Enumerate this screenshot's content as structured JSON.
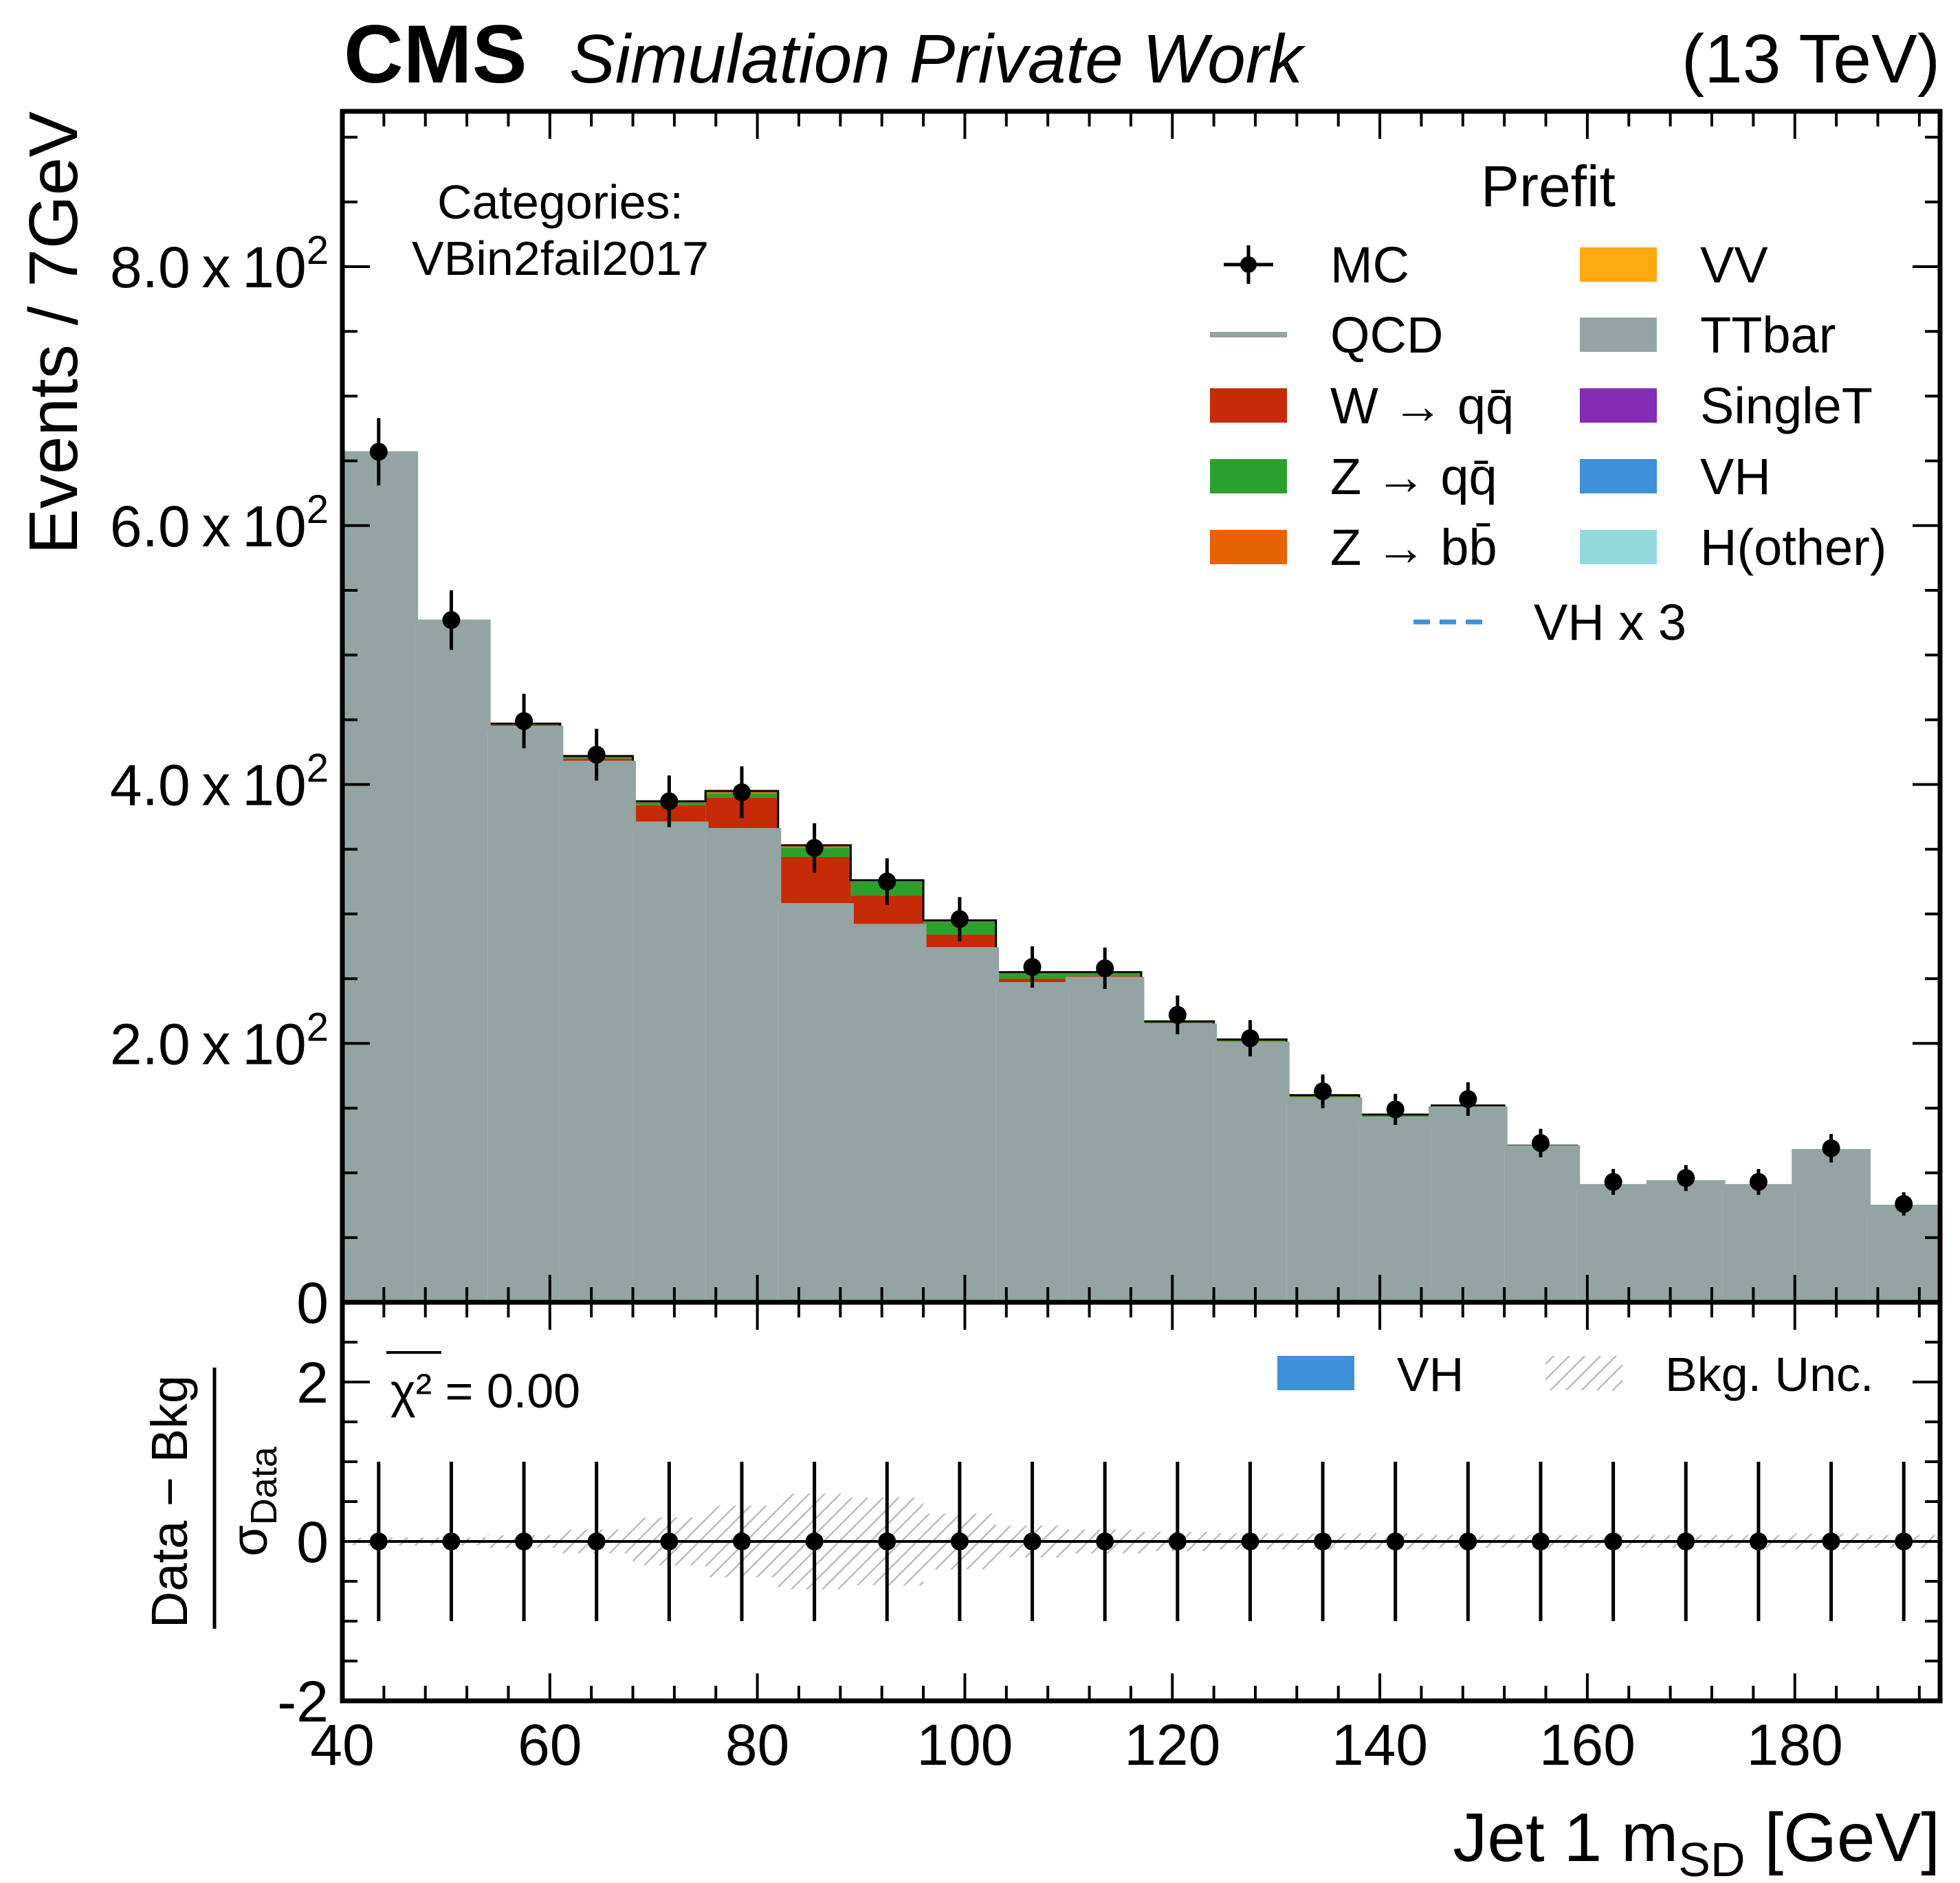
{
  "header": {
    "experiment": "CMS",
    "status": "Simulation Private Work",
    "energy": "(13 TeV)"
  },
  "category": {
    "title": "Categories:",
    "name": "VBin2fail2017"
  },
  "legend": {
    "title": "Prefit",
    "entries": [
      {
        "label": "MC",
        "kind": "errorbar",
        "color": "#000000"
      },
      {
        "label": "QCD",
        "kind": "line",
        "color": "#94a4a2"
      },
      {
        "label": "W → qq̄",
        "kind": "fill",
        "color": "#c62a07"
      },
      {
        "label": "Z → qq̄",
        "kind": "fill",
        "color": "#2ca02c"
      },
      {
        "label": "Z → bb̄",
        "kind": "fill",
        "color": "#e76300"
      },
      {
        "label": "VV",
        "kind": "fill",
        "color": "#ffa90e"
      },
      {
        "label": "TTbar",
        "kind": "fill",
        "color": "#94a4a2"
      },
      {
        "label": "SingleT",
        "kind": "fill",
        "color": "#832db6"
      },
      {
        "label": "VH",
        "kind": "fill",
        "color": "#3f90da"
      },
      {
        "label": "H(other)",
        "kind": "fill",
        "color": "#92dadd"
      },
      {
        "label": "VH x 3",
        "kind": "dashed",
        "color": "#3f90da"
      }
    ]
  },
  "ratio_legend": {
    "chi2": "χ² = 0.00",
    "vh": "VH",
    "unc": "Bkg. Unc."
  },
  "chart_data": {
    "type": "bar",
    "stacked": true,
    "top_ylabel": "Events / 7GeV",
    "ratio_ylabel_num": "Data − Bkg",
    "ratio_ylabel_den": "σ",
    "ratio_ylabel_den_sub": "Data",
    "xlabel_main": "Jet 1 m",
    "xlabel_sub": "SD",
    "xlabel_unit": " [GeV]",
    "xlim": [
      40,
      194
    ],
    "ylim": [
      0,
      920
    ],
    "ratio_ylim": [
      -2,
      3
    ],
    "x_ticks": [
      40,
      60,
      80,
      100,
      120,
      140,
      160,
      180
    ],
    "y_ticks": [
      {
        "value": 0,
        "mant": "0",
        "exp": ""
      },
      {
        "value": 200,
        "mant": "2.0",
        "exp": "2"
      },
      {
        "value": 400,
        "mant": "4.0",
        "exp": "2"
      },
      {
        "value": 600,
        "mant": "6.0",
        "exp": "2"
      },
      {
        "value": 800,
        "mant": "8.0",
        "exp": "2"
      }
    ],
    "ratio_y_ticks": [
      {
        "value": -2,
        "label": "-2"
      },
      {
        "value": 0,
        "label": "0"
      },
      {
        "value": 2,
        "label": "2"
      }
    ],
    "bin_edges": [
      40,
      47,
      54,
      61,
      68,
      75,
      82,
      89,
      96,
      103,
      110,
      117,
      124,
      131,
      138,
      145,
      152,
      159,
      166,
      173,
      180,
      187,
      194
    ],
    "series": [
      {
        "name": "QCD",
        "color": "#94a4a2",
        "values": [
          655,
          525,
          443,
          416,
          369,
          364,
          306,
          290,
          272,
          245,
          249,
          213,
          199,
          156,
          141,
          149,
          119,
          89,
          92,
          89,
          116,
          73
        ]
      },
      {
        "name": "W → qq̄",
        "color": "#c62a07",
        "values": [
          1,
          1,
          3,
          4,
          15,
          26,
          38,
          24,
          12,
          5,
          3,
          2,
          2,
          2,
          2,
          1,
          1,
          1,
          1,
          1,
          1,
          1
        ]
      },
      {
        "name": "Z → qq̄",
        "color": "#2ca02c",
        "values": [
          0,
          0,
          1,
          1,
          2,
          3,
          7,
          11,
          10,
          4,
          2,
          1,
          1,
          1,
          1,
          1,
          1,
          0,
          0,
          0,
          0,
          0
        ]
      },
      {
        "name": "Z → bb̄",
        "color": "#e76300",
        "values": [
          0,
          0,
          0,
          1,
          1,
          1,
          1,
          1,
          1,
          1,
          1,
          1,
          1,
          1,
          1,
          1,
          0,
          0,
          0,
          0,
          0,
          0
        ]
      },
      {
        "name": "VV",
        "color": "#ffa90e",
        "values": [
          0,
          0,
          0,
          0,
          0,
          1,
          1,
          0,
          0,
          0,
          0,
          0,
          0,
          0,
          0,
          0,
          0,
          0,
          0,
          0,
          0,
          0
        ]
      }
    ],
    "mc_points": {
      "y": [
        657,
        527,
        449,
        423,
        387,
        394,
        351,
        325,
        296,
        259,
        258,
        222,
        204,
        163,
        149,
        157,
        123,
        93,
        96,
        93,
        119,
        76
      ],
      "yerr": [
        26,
        23,
        21,
        20,
        20,
        20,
        19,
        18,
        17,
        16,
        16,
        15,
        14,
        13,
        12,
        13,
        11,
        10,
        10,
        10,
        11,
        9
      ]
    },
    "ratio_points": {
      "y": [
        0,
        0,
        0,
        0,
        0,
        0,
        0,
        0,
        0,
        0,
        0,
        0,
        0,
        0,
        0,
        0,
        0,
        0,
        0,
        0,
        0,
        0
      ],
      "yerr": [
        1,
        1,
        1,
        1,
        1,
        1,
        1,
        1,
        1,
        1,
        1,
        1,
        1,
        1,
        1,
        1,
        1,
        1,
        1,
        1,
        1,
        1
      ]
    },
    "bkg_unc": [
      0.05,
      0.05,
      0.08,
      0.15,
      0.3,
      0.45,
      0.6,
      0.55,
      0.35,
      0.2,
      0.15,
      0.12,
      0.1,
      0.1,
      0.1,
      0.08,
      0.08,
      0.08,
      0.08,
      0.08,
      0.1,
      0.08
    ]
  }
}
